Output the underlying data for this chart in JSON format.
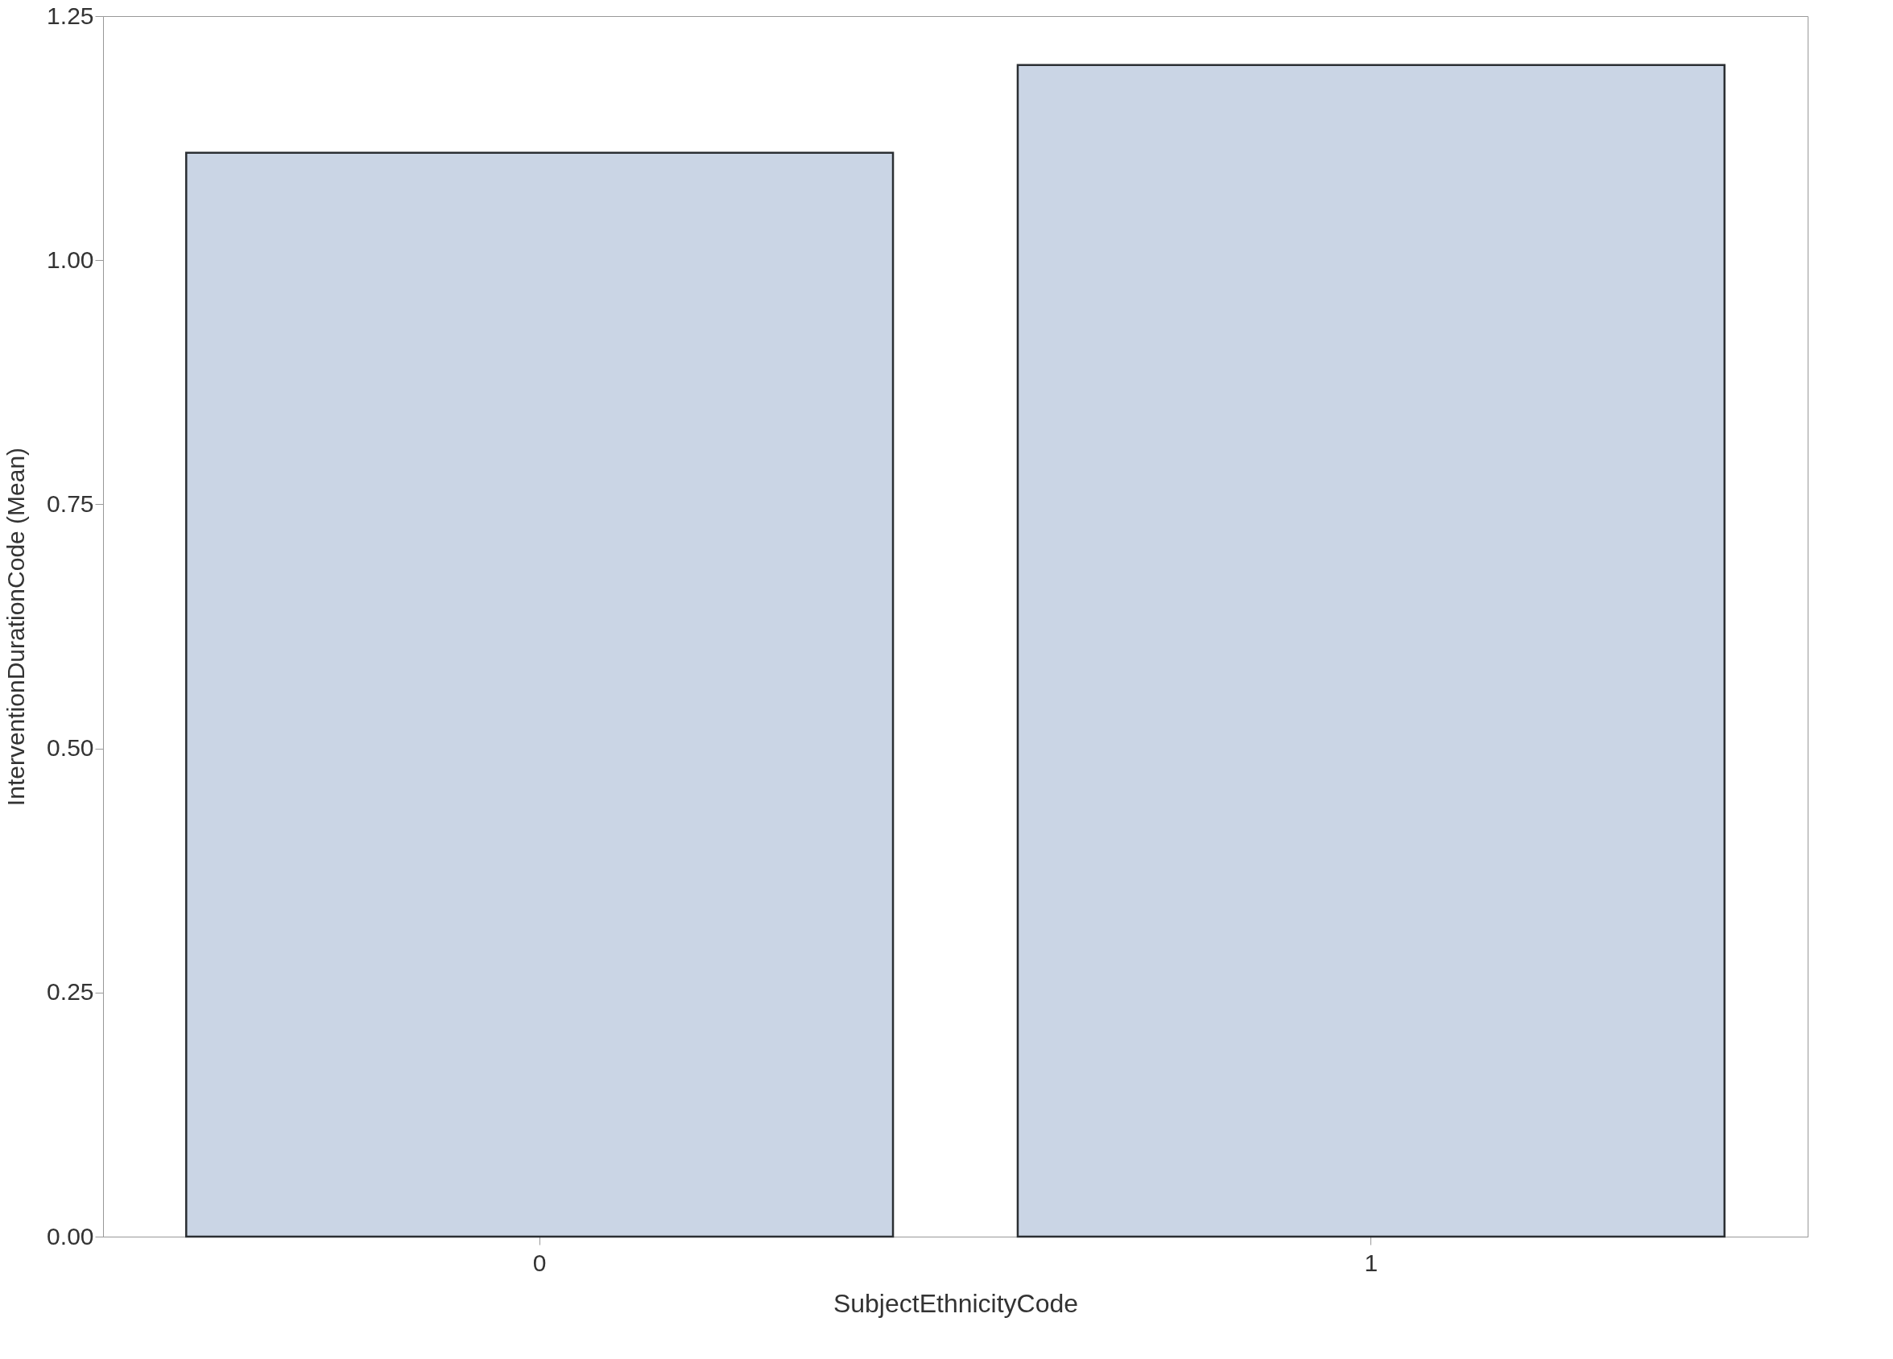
{
  "chart_data": {
    "type": "bar",
    "xlabel": "SubjectEthnicityCode",
    "ylabel": "InterventionDurationCode (Mean)",
    "categories": [
      "0",
      "1"
    ],
    "values": [
      1.11,
      1.2
    ],
    "color": "#cad5e5",
    "ylim": [
      0,
      1.25
    ],
    "yticks": [
      {
        "value": 0,
        "label": "0.00"
      },
      {
        "value": 0.25,
        "label": "0.25"
      },
      {
        "value": 0.5,
        "label": "0.50"
      },
      {
        "value": 0.75,
        "label": "0.75"
      },
      {
        "value": 1,
        "label": "1.00"
      },
      {
        "value": 1.25,
        "label": "1.25"
      }
    ],
    "grid": false
  }
}
